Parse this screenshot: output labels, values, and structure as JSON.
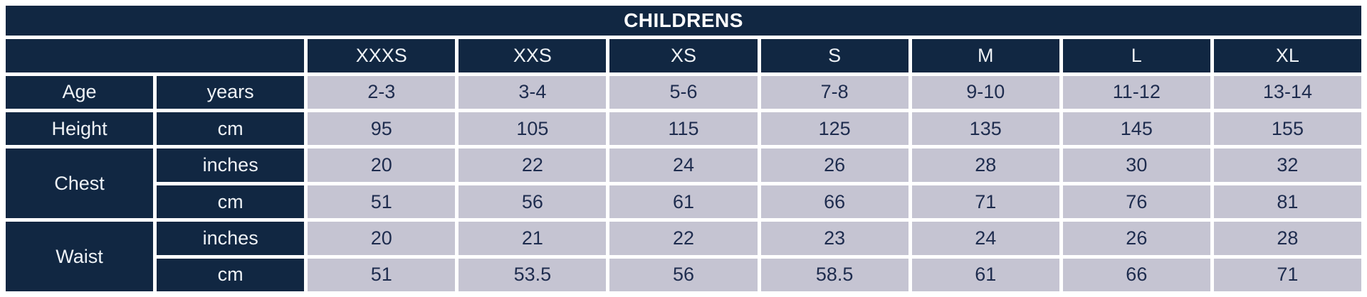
{
  "chart_data": {
    "type": "table",
    "title": "CHILDRENS",
    "size_columns": [
      "XXXS",
      "XXS",
      "XS",
      "S",
      "M",
      "L",
      "XL"
    ],
    "measurement_rows": [
      {
        "label": "Age",
        "unit": "years",
        "values": [
          "2-3",
          "3-4",
          "5-6",
          "7-8",
          "9-10",
          "11-12",
          "13-14"
        ]
      },
      {
        "label": "Height",
        "unit": "cm",
        "values": [
          95,
          105,
          115,
          125,
          135,
          145,
          155
        ]
      },
      {
        "label": "Chest",
        "unit": "inches",
        "values": [
          20,
          22,
          24,
          26,
          28,
          30,
          32
        ]
      },
      {
        "label": "Chest",
        "unit": "cm",
        "values": [
          51,
          56,
          61,
          66,
          71,
          76,
          81
        ]
      },
      {
        "label": "Waist",
        "unit": "inches",
        "values": [
          20,
          21,
          22,
          23,
          24,
          26,
          28
        ]
      },
      {
        "label": "Waist",
        "unit": "cm",
        "values": [
          51,
          53.5,
          56,
          58.5,
          61,
          66,
          71
        ]
      }
    ],
    "layout": {
      "grid": "white gaps between cells",
      "legend": "none",
      "align": "center"
    },
    "colors": {
      "header_bg": "#112742",
      "cell_bg": "#c5c4d2",
      "grid": "#ffffff",
      "title_text": "#ffffff",
      "header_text": "#eef2f6",
      "cell_text": "#1e2c4e"
    }
  }
}
